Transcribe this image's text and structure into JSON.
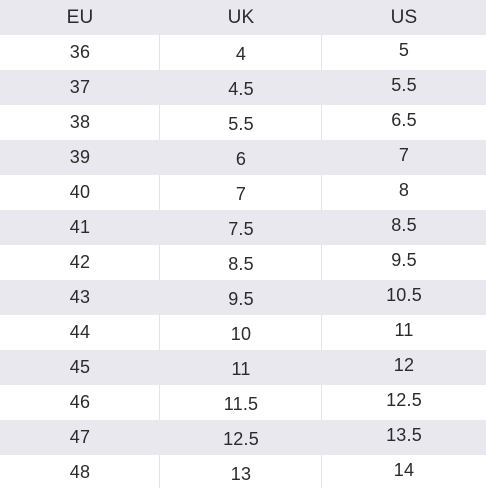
{
  "headers": [
    "EU",
    "UK",
    "US"
  ],
  "rows": [
    [
      "36",
      "4",
      "5"
    ],
    [
      "37",
      "4.5",
      "5.5"
    ],
    [
      "38",
      "5.5",
      "6.5"
    ],
    [
      "39",
      "6",
      "7"
    ],
    [
      "40",
      "7",
      "8"
    ],
    [
      "41",
      "7.5",
      "8.5"
    ],
    [
      "42",
      "8.5",
      "9.5"
    ],
    [
      "43",
      "9.5",
      "10.5"
    ],
    [
      "44",
      "10",
      "11"
    ],
    [
      "45",
      "11",
      "12"
    ],
    [
      "46",
      "11.5",
      "12.5"
    ],
    [
      "47",
      "12.5",
      "13.5"
    ],
    [
      "48",
      "13",
      "14"
    ]
  ],
  "colors": {
    "shaded_row": "#e8e8ee",
    "text": "#2b2b2b",
    "divider": "#e4e4e8"
  }
}
